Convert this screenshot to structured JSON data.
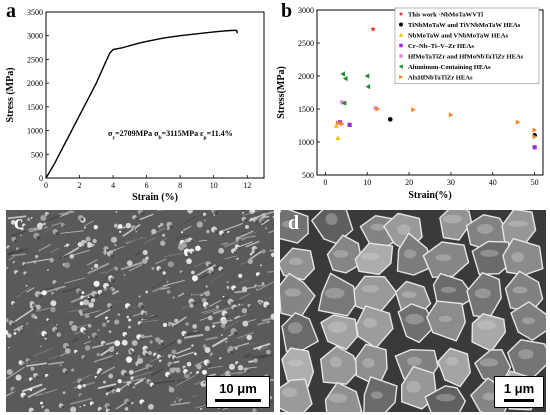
{
  "panels": {
    "a": {
      "letter": "a"
    },
    "b": {
      "letter": "b"
    },
    "c": {
      "letter": "c",
      "scale_label": "10 μm"
    },
    "d": {
      "letter": "d",
      "scale_label": "1 μm"
    }
  },
  "chart_data": [
    {
      "type": "line",
      "xlabel": "Strain (%)",
      "ylabel": "Stress (MPa)",
      "xlim": [
        0,
        13
      ],
      "ylim": [
        0,
        3500
      ],
      "xticks": [
        0,
        2,
        4,
        6,
        8,
        10,
        12
      ],
      "yticks": [
        0,
        500,
        1000,
        1500,
        2000,
        2500,
        3000,
        3500
      ],
      "grid": false,
      "series": [
        {
          "color": "#000000",
          "x": [
            0,
            0.5,
            1.0,
            1.5,
            2.0,
            2.5,
            3.0,
            3.5,
            3.8,
            4.0,
            4.5,
            5.0,
            5.5,
            6.0,
            7.0,
            8.0,
            9.0,
            10.0,
            10.5,
            11.0,
            11.35,
            11.4,
            11.4
          ],
          "y": [
            0,
            300,
            640,
            980,
            1320,
            1660,
            2000,
            2400,
            2630,
            2709,
            2740,
            2790,
            2840,
            2880,
            2950,
            3000,
            3040,
            3080,
            3095,
            3110,
            3115,
            3090,
            3050
          ]
        }
      ],
      "annotation": {
        "sigma_y_label": "σ",
        "sigma_y_sub": "y",
        "sigma_y_value": "=2709MPa",
        "sigma_b_label": "σ",
        "sigma_b_sub": "b",
        "sigma_b_value": "=3115MPa",
        "eps_label": "ε",
        "eps_sub": "p",
        "eps_value": "=11.4%"
      }
    },
    {
      "type": "scatter",
      "xlabel": "Strain(%)",
      "ylabel": "Stress(MPa)",
      "xlim": [
        -2,
        52
      ],
      "ylim": [
        500,
        3000
      ],
      "xticks": [
        0,
        10,
        20,
        30,
        40,
        50
      ],
      "yticks": [
        500,
        1000,
        1500,
        2000,
        2500,
        3000
      ],
      "grid": false,
      "legend_position": "top-right",
      "series": [
        {
          "name": "This work -NbMoTaWVTi",
          "marker": "star",
          "color": "#e8231f",
          "points": [
            [
              11.4,
              2709
            ]
          ]
        },
        {
          "name": "TiNbMoTaW and TiVNbMoTaW HEAs",
          "marker": "circle",
          "color": "#000000",
          "points": [
            [
              15.5,
              1343
            ],
            [
              50,
              1100
            ]
          ]
        },
        {
          "name": "NbMoTaW and VNbMoTaW HEAs",
          "marker": "triangle-up",
          "color": "#f0c400",
          "points": [
            [
              2.6,
              1246
            ],
            [
              3.0,
              1060
            ]
          ]
        },
        {
          "name": "Cr–Nb–Ti–V–Zr HEAs",
          "marker": "square",
          "color": "#9b2bd6",
          "points": [
            [
              3.5,
              1298
            ],
            [
              5.8,
              1260
            ],
            [
              50,
              920
            ]
          ]
        },
        {
          "name": "HfMoTaTiZr and HfMoNbTaTiZr HEAs",
          "marker": "circle",
          "color": "#e88ee8",
          "points": [
            [
              4.0,
              1600
            ],
            [
              12.0,
              1512
            ]
          ]
        },
        {
          "name": "Aluminum-Containing HEAs",
          "marker": "triangle-left",
          "color": "#1f8a2e",
          "points": [
            [
              4.2,
              2030
            ],
            [
              4.8,
              1960
            ],
            [
              10.0,
              2000
            ],
            [
              10.2,
              1840
            ],
            [
              4.5,
              1590
            ]
          ]
        },
        {
          "name": "AlxHfNbTaTiZr HEAs",
          "marker": "triangle-right",
          "color": "#f08a2a",
          "points": [
            [
              3.0,
              1290
            ],
            [
              4.0,
              1274
            ],
            [
              12.5,
              1500
            ],
            [
              21.0,
              1490
            ],
            [
              30.0,
              1410
            ],
            [
              46.0,
              1300
            ],
            [
              50.0,
              1180
            ],
            [
              50.0,
              1080
            ]
          ]
        }
      ]
    }
  ],
  "colors": {
    "axis": "#000000",
    "sem_dark": "#2e2e2e",
    "sem_mid": "#6b6b6b",
    "sem_light": "#c8c8c8"
  }
}
